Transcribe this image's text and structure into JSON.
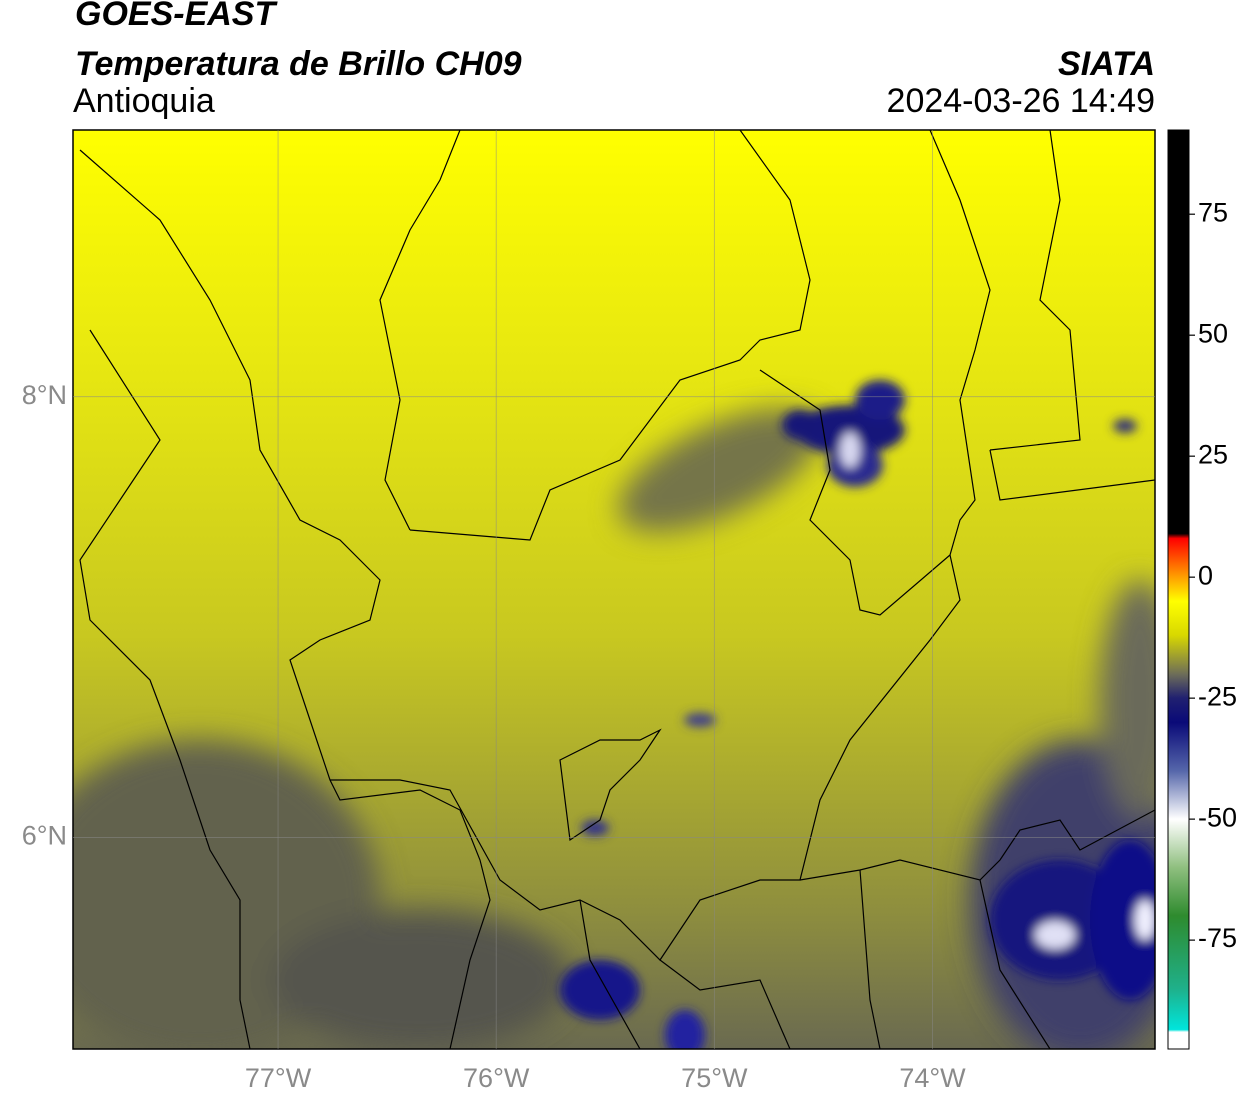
{
  "header": {
    "title": "GOES-EAST",
    "subtitle": "Temperatura de Brillo CH09",
    "region": "Antioquia",
    "source": "SIATA",
    "datetime": "2024-03-26 14:49"
  },
  "map": {
    "xlim": [
      -77.94,
      -72.98
    ],
    "ylim": [
      5.04,
      9.21
    ],
    "xticks": [
      {
        "value": -77,
        "label": "77°W"
      },
      {
        "value": -76,
        "label": "76°W"
      },
      {
        "value": -75,
        "label": "75°W"
      },
      {
        "value": -74,
        "label": "74°W"
      }
    ],
    "yticks": [
      {
        "value": 8,
        "label": "8°N"
      },
      {
        "value": 6,
        "label": "6°N"
      }
    ],
    "grid": true
  },
  "colorbar": {
    "lim": [
      -97.5,
      92.4
    ],
    "ticks": [
      75,
      50,
      25,
      0,
      -25,
      -50,
      -75
    ],
    "colorscale": [
      {
        "value": -97.5,
        "color": "#ffffff"
      },
      {
        "value": -94,
        "color": "#ffffff"
      },
      {
        "value": -93.5,
        "color": "#00e5dc"
      },
      {
        "value": -85,
        "color": "#1fb08a"
      },
      {
        "value": -70,
        "color": "#2e8b2e"
      },
      {
        "value": -60,
        "color": "#8fbf7f"
      },
      {
        "value": -50,
        "color": "#ffffff"
      },
      {
        "value": -40,
        "color": "#5566aa"
      },
      {
        "value": -30,
        "color": "#0a0a78"
      },
      {
        "value": -25,
        "color": "#202070"
      },
      {
        "value": -20,
        "color": "#6e6e58"
      },
      {
        "value": -12,
        "color": "#d8d800"
      },
      {
        "value": -5,
        "color": "#ffff00"
      },
      {
        "value": 0,
        "color": "#ffa000"
      },
      {
        "value": 8,
        "color": "#ff0000"
      },
      {
        "value": 9,
        "color": "#000000"
      },
      {
        "value": 92.4,
        "color": "#000000"
      }
    ]
  }
}
